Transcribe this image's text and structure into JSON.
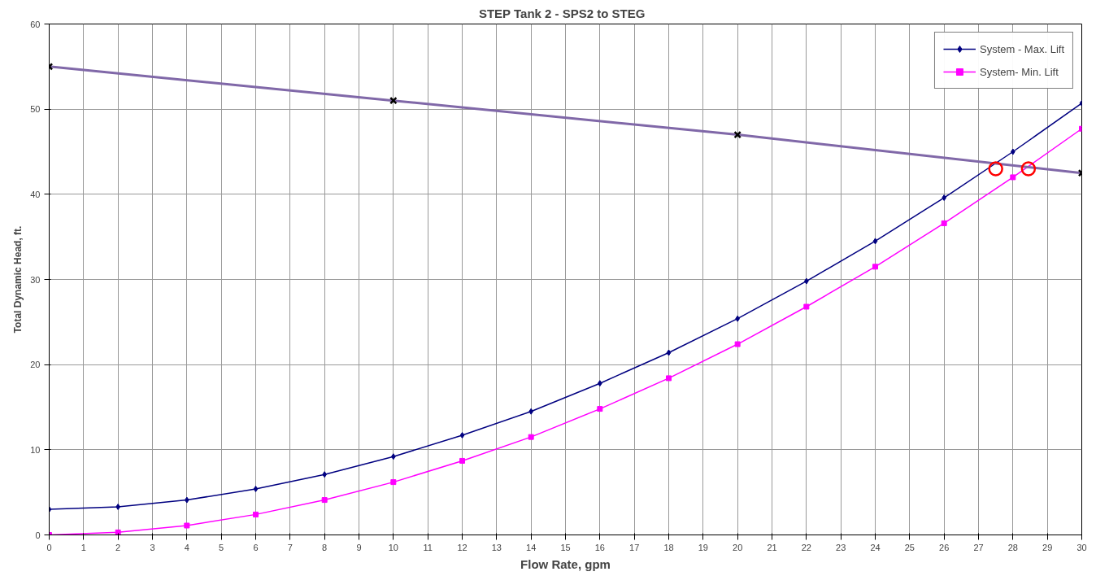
{
  "chart_data": {
    "type": "line",
    "title": "STEP  Tank 2 -  SPS2 to STEG",
    "xlabel": "Flow Rate, gpm",
    "ylabel": "Total Dynamic Head, ft.",
    "xlim": [
      0,
      30
    ],
    "xticks": [
      0,
      1,
      2,
      3,
      4,
      5,
      6,
      7,
      8,
      9,
      10,
      11,
      12,
      13,
      14,
      15,
      16,
      17,
      18,
      19,
      20,
      21,
      22,
      23,
      24,
      25,
      26,
      27,
      28,
      29,
      30
    ],
    "ylim": [
      0,
      60
    ],
    "yticks": [
      0,
      10,
      20,
      30,
      40,
      50,
      60
    ],
    "grid": true,
    "legend": "top right",
    "line_style": "solid",
    "series": [
      {
        "name": "System - Max. Lift",
        "color": "#000080",
        "marker": "diamond",
        "x": [
          0,
          2,
          4,
          6,
          8,
          10,
          12,
          14,
          16,
          18,
          20,
          22,
          24,
          26,
          28,
          30
        ],
        "values": [
          3.0,
          3.3,
          4.1,
          5.4,
          7.1,
          9.2,
          11.7,
          14.5,
          17.8,
          21.4,
          25.4,
          29.8,
          34.5,
          39.6,
          45.0,
          50.7
        ]
      },
      {
        "name": "System- Min. Lift",
        "color": "#ff00ff",
        "marker": "square",
        "x": [
          0,
          2,
          4,
          6,
          8,
          10,
          12,
          14,
          16,
          18,
          20,
          22,
          24,
          26,
          28,
          30
        ],
        "values": [
          0,
          0.3,
          1.1,
          2.4,
          4.1,
          6.2,
          8.7,
          11.5,
          14.8,
          18.4,
          22.4,
          26.8,
          31.5,
          36.6,
          42.0,
          47.7
        ]
      },
      {
        "color": "#8068a8",
        "marker": "cross",
        "x": [
          0,
          10,
          20,
          30
        ],
        "values": [
          55,
          51,
          47,
          42.5
        ]
      },
      {
        "type": "scatter",
        "color": "#ff0000",
        "marker": "circle",
        "x": [
          27.5,
          28.45
        ],
        "values": [
          43,
          43
        ]
      }
    ]
  }
}
